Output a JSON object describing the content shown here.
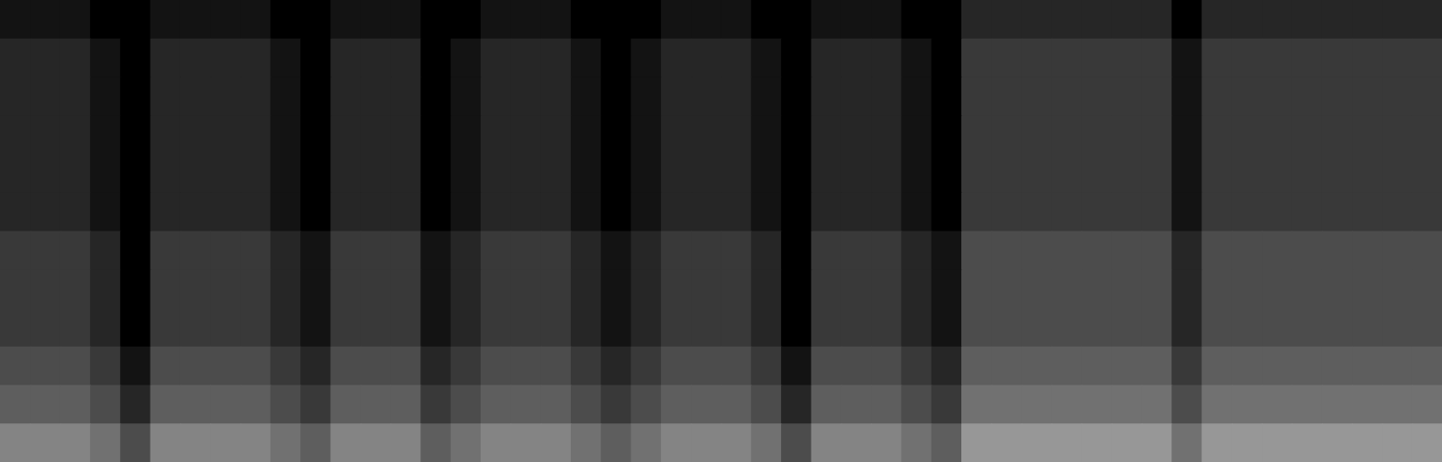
{
  "chart_data": {
    "type": "heatmap",
    "tick_labels": false,
    "xlim": [
      0,
      48
    ],
    "ylim": [
      0,
      12
    ],
    "zlim": [
      0,
      9
    ],
    "cells": [
      [
        1,
        1,
        1,
        0,
        0,
        1,
        1,
        1,
        1,
        0,
        0,
        1,
        1,
        1,
        0,
        0,
        1,
        1,
        1,
        0,
        0,
        0,
        1,
        1,
        1,
        0,
        0,
        1,
        1,
        1,
        0,
        0,
        2,
        2,
        2,
        2,
        2,
        2,
        2,
        0,
        2,
        2,
        2,
        2,
        2,
        2,
        2,
        2
      ],
      [
        2,
        2,
        2,
        1,
        0,
        2,
        2,
        2,
        2,
        1,
        0,
        2,
        2,
        2,
        0,
        1,
        2,
        2,
        2,
        1,
        0,
        1,
        2,
        2,
        2,
        1,
        0,
        2,
        2,
        2,
        1,
        0,
        3,
        3,
        3,
        3,
        3,
        3,
        3,
        1,
        3,
        3,
        3,
        3,
        3,
        3,
        3,
        3
      ],
      [
        2,
        2,
        2,
        1,
        0,
        2,
        2,
        2,
        2,
        1,
        0,
        2,
        2,
        2,
        0,
        1,
        2,
        2,
        2,
        1,
        0,
        1,
        2,
        2,
        2,
        1,
        0,
        2,
        2,
        2,
        1,
        0,
        3,
        3,
        3,
        3,
        3,
        3,
        3,
        1,
        3,
        3,
        3,
        3,
        3,
        3,
        3,
        3
      ],
      [
        2,
        2,
        2,
        1,
        0,
        2,
        2,
        2,
        2,
        1,
        0,
        2,
        2,
        2,
        0,
        1,
        2,
        2,
        2,
        1,
        0,
        1,
        2,
        2,
        2,
        1,
        0,
        2,
        2,
        2,
        1,
        0,
        3,
        3,
        3,
        3,
        3,
        3,
        3,
        1,
        3,
        3,
        3,
        3,
        3,
        3,
        3,
        3
      ],
      [
        2,
        2,
        2,
        1,
        0,
        2,
        2,
        2,
        2,
        1,
        0,
        2,
        2,
        2,
        0,
        1,
        2,
        2,
        2,
        1,
        0,
        1,
        2,
        2,
        2,
        1,
        0,
        2,
        2,
        2,
        1,
        0,
        3,
        3,
        3,
        3,
        3,
        3,
        3,
        1,
        3,
        3,
        3,
        3,
        3,
        3,
        3,
        3
      ],
      [
        2,
        2,
        2,
        1,
        0,
        2,
        2,
        2,
        2,
        1,
        0,
        2,
        2,
        2,
        0,
        1,
        2,
        2,
        2,
        1,
        0,
        1,
        2,
        2,
        2,
        1,
        0,
        2,
        2,
        2,
        1,
        0,
        3,
        3,
        3,
        3,
        3,
        3,
        3,
        1,
        3,
        3,
        3,
        3,
        3,
        3,
        3,
        3
      ],
      [
        3,
        3,
        3,
        2,
        0,
        3,
        3,
        3,
        3,
        2,
        1,
        3,
        3,
        3,
        1,
        2,
        3,
        3,
        3,
        2,
        1,
        2,
        3,
        3,
        3,
        2,
        0,
        3,
        3,
        3,
        2,
        1,
        4,
        4,
        4,
        4,
        4,
        4,
        4,
        2,
        4,
        4,
        4,
        4,
        4,
        4,
        4,
        4
      ],
      [
        3,
        3,
        3,
        2,
        0,
        3,
        3,
        3,
        3,
        2,
        1,
        3,
        3,
        3,
        1,
        2,
        3,
        3,
        3,
        2,
        1,
        2,
        3,
        3,
        3,
        2,
        0,
        3,
        3,
        3,
        2,
        1,
        4,
        4,
        4,
        4,
        4,
        4,
        4,
        2,
        4,
        4,
        4,
        4,
        4,
        4,
        4,
        4
      ],
      [
        3,
        3,
        3,
        2,
        0,
        3,
        3,
        3,
        3,
        2,
        1,
        3,
        3,
        3,
        1,
        2,
        3,
        3,
        3,
        2,
        1,
        2,
        3,
        3,
        3,
        2,
        0,
        3,
        3,
        3,
        2,
        1,
        4,
        4,
        4,
        4,
        4,
        4,
        4,
        2,
        4,
        4,
        4,
        4,
        4,
        4,
        4,
        4
      ],
      [
        4,
        4,
        4,
        3,
        1,
        4,
        4,
        4,
        4,
        3,
        2,
        4,
        4,
        4,
        2,
        3,
        4,
        4,
        4,
        3,
        2,
        3,
        4,
        4,
        4,
        3,
        1,
        4,
        4,
        4,
        3,
        2,
        5,
        5,
        5,
        5,
        5,
        5,
        5,
        3,
        5,
        5,
        5,
        5,
        5,
        5,
        5,
        5
      ],
      [
        5,
        5,
        5,
        4,
        2,
        5,
        5,
        5,
        5,
        4,
        3,
        5,
        5,
        5,
        3,
        4,
        5,
        5,
        5,
        4,
        3,
        4,
        5,
        5,
        5,
        4,
        2,
        5,
        5,
        5,
        4,
        3,
        6,
        6,
        6,
        6,
        6,
        6,
        6,
        4,
        6,
        6,
        6,
        6,
        6,
        6,
        6,
        6
      ],
      [
        7,
        7,
        7,
        6,
        4,
        7,
        7,
        7,
        7,
        6,
        5,
        7,
        7,
        7,
        5,
        6,
        7,
        7,
        7,
        6,
        5,
        6,
        7,
        7,
        7,
        6,
        4,
        7,
        7,
        7,
        6,
        5,
        8,
        8,
        8,
        8,
        8,
        8,
        8,
        6,
        8,
        8,
        8,
        8,
        8,
        8,
        8,
        8
      ]
    ]
  }
}
